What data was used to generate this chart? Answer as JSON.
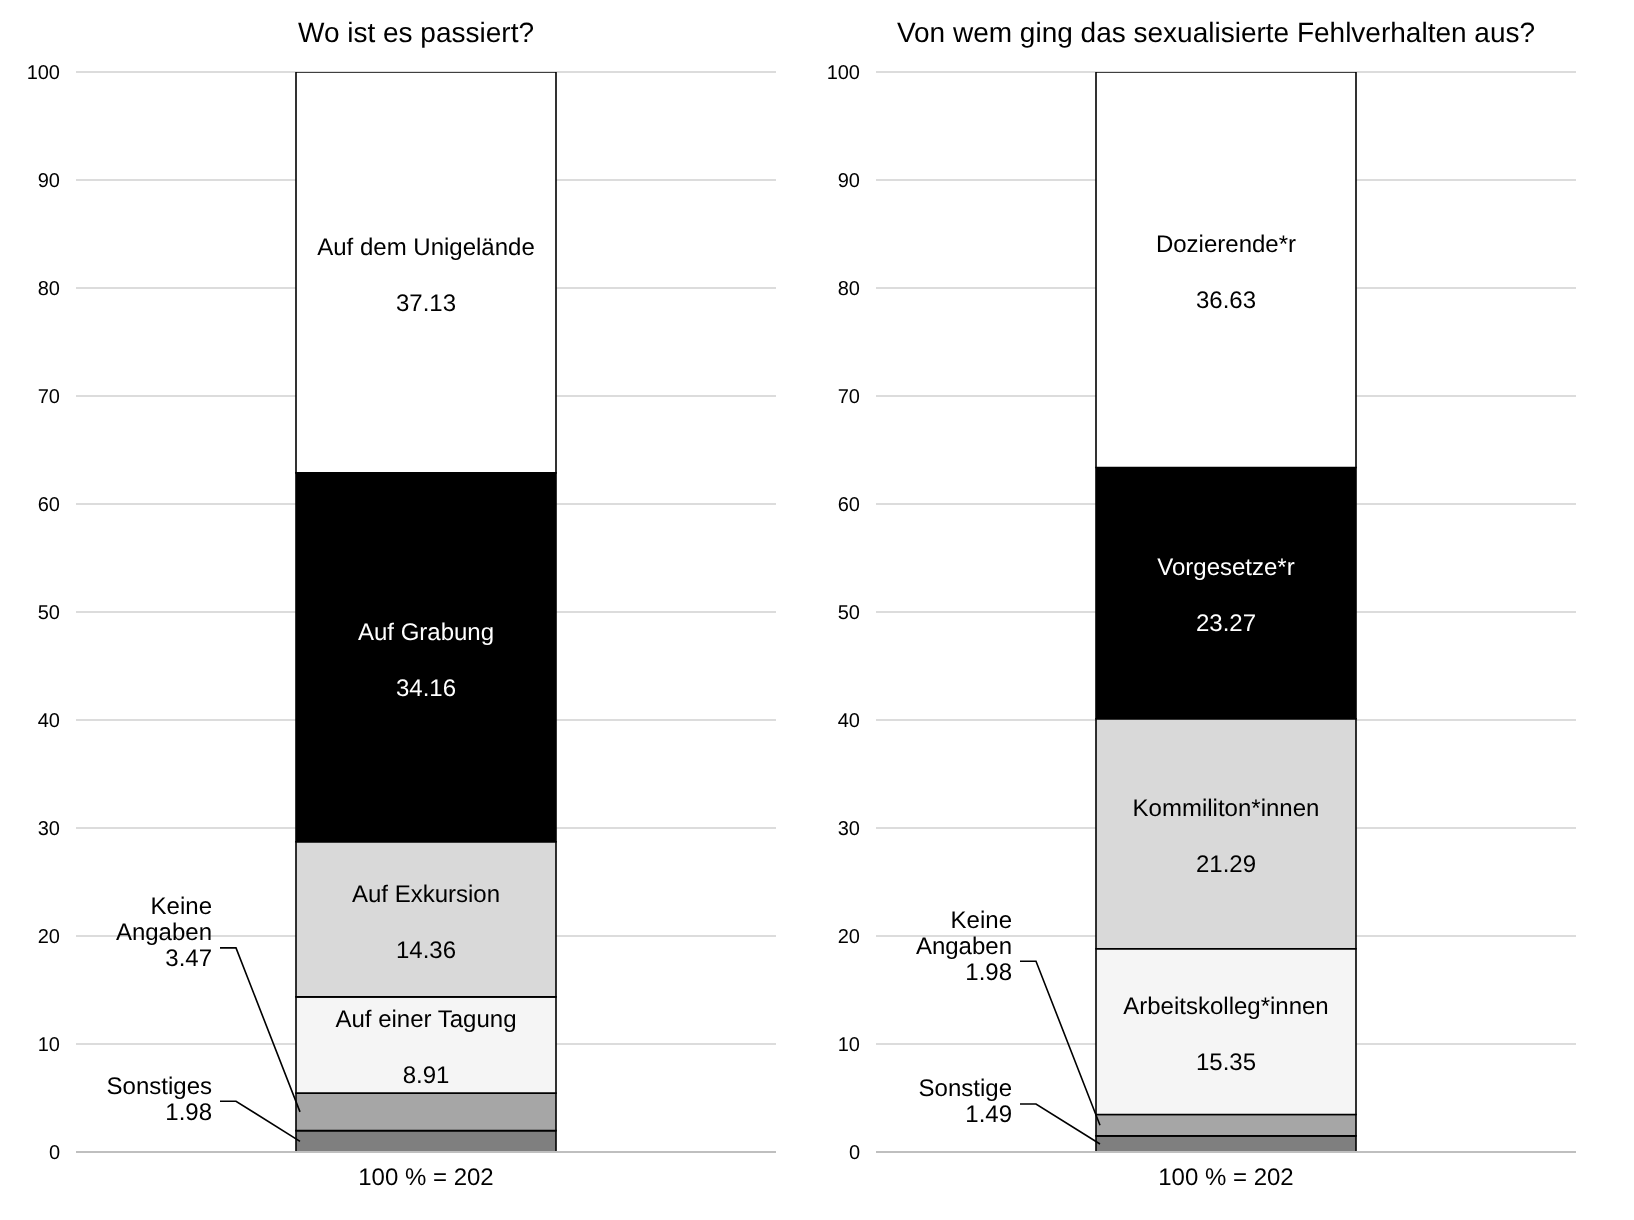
{
  "chart_data": [
    {
      "type": "bar",
      "stacked": true,
      "title": "Wo ist es passiert?",
      "categories": [
        "100 % = 202"
      ],
      "series": [
        {
          "name": "Sonstiges",
          "color": "#7f7f7f",
          "values": [
            1.98
          ],
          "value_labels": [
            null
          ]
        },
        {
          "name": "Keine Angaben",
          "color": "#a6a6a6",
          "values": [
            3.47
          ],
          "value_labels": [
            null
          ]
        },
        {
          "name": "Auf einer Tagung",
          "color": "#f5f5f5",
          "values": [
            8.91
          ],
          "value_labels": [
            "8.91"
          ]
        },
        {
          "name": "Auf Exkursion",
          "color": "#d9d9d9",
          "values": [
            14.36
          ],
          "value_labels": [
            "14.36"
          ]
        },
        {
          "name": "Auf Grabung",
          "color": "#000000",
          "values": [
            34.16
          ],
          "value_labels": [
            "34.16"
          ]
        },
        {
          "name": "Auf dem Unigelände",
          "color": "#ffffff",
          "values": [
            37.13
          ],
          "value_labels": [
            "37.13"
          ]
        }
      ],
      "annotations": [
        "1.98",
        "3.47"
      ],
      "ylim": [
        0,
        100
      ],
      "yticks": [
        0,
        10,
        20,
        30,
        40,
        50,
        60,
        70,
        80,
        90,
        100
      ],
      "grid": "y",
      "legend": false
    },
    {
      "type": "bar",
      "stacked": true,
      "title": "Von wem ging das sexualisierte Fehlverhalten aus?",
      "categories": [
        "100 % = 202"
      ],
      "series": [
        {
          "name": "Sonstige",
          "color": "#7f7f7f",
          "values": [
            1.49
          ],
          "value_labels": [
            null
          ]
        },
        {
          "name": "Keine Angaben",
          "color": "#a6a6a6",
          "values": [
            1.98
          ],
          "value_labels": [
            null
          ]
        },
        {
          "name": "Arbeitskolleg*innen",
          "color": "#f5f5f5",
          "values": [
            15.35
          ],
          "value_labels": [
            "15.35"
          ]
        },
        {
          "name": "Kommiliton*innen",
          "color": "#d9d9d9",
          "values": [
            21.29
          ],
          "value_labels": [
            "21.29"
          ]
        },
        {
          "name": "Vorgesetze*r",
          "color": "#000000",
          "values": [
            23.27
          ],
          "value_labels": [
            "23.27"
          ]
        },
        {
          "name": "Dozierende*r",
          "color": "#ffffff",
          "values": [
            36.63
          ],
          "value_labels": [
            "36.63"
          ]
        }
      ],
      "annotations": [
        "1.49",
        "1.98"
      ],
      "ylim": [
        0,
        100
      ],
      "yticks": [
        0,
        10,
        20,
        30,
        40,
        50,
        60,
        70,
        80,
        90,
        100
      ],
      "grid": "y",
      "legend": false
    }
  ]
}
